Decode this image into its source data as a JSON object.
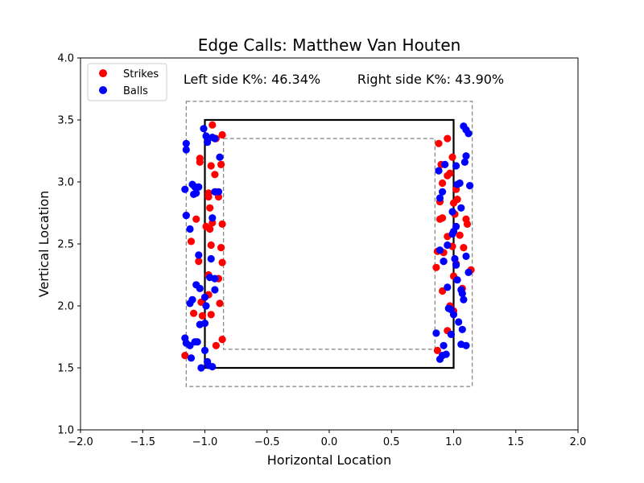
{
  "chart_data": {
    "type": "scatter",
    "title": "Edge Calls: Matthew Van Houten",
    "xlabel": "Horizontal Location",
    "ylabel": "Vertical Location",
    "xlim": [
      -2.0,
      2.0
    ],
    "ylim": [
      1.0,
      4.0
    ],
    "xticks": [
      "−2.0",
      "−1.5",
      "−1.0",
      "−0.5",
      "0.0",
      "0.5",
      "1.0",
      "1.5",
      "2.0"
    ],
    "yticks": [
      "1.0",
      "1.5",
      "2.0",
      "2.5",
      "3.0",
      "3.5",
      "4.0"
    ],
    "grid": false,
    "legend_position": "top-left",
    "annotations": {
      "left": "Left side K%: 46.34%",
      "right": "Right side K%: 43.90%"
    },
    "zones": {
      "strike_zone": {
        "x": [
          -1.0,
          1.0
        ],
        "y": [
          1.5,
          3.5
        ],
        "color": "#000000",
        "style": "solid"
      },
      "outer_edge": {
        "x": [
          -1.15,
          1.15
        ],
        "y": [
          1.35,
          3.65
        ],
        "color": "#808080",
        "style": "dashed"
      },
      "inner_edge": {
        "x": [
          -0.85,
          0.85
        ],
        "y": [
          1.65,
          3.35
        ],
        "color": "#808080",
        "style": "dashed"
      }
    },
    "series": [
      {
        "name": "Strikes",
        "color": "#ff0000",
        "points": [
          [
            -0.94,
            3.46
          ],
          [
            -1.04,
            3.19
          ],
          [
            -1.04,
            3.16
          ],
          [
            -0.86,
            3.38
          ],
          [
            -0.91,
            3.35
          ],
          [
            -0.95,
            3.13
          ],
          [
            -0.87,
            3.14
          ],
          [
            -0.92,
            3.06
          ],
          [
            -0.97,
            2.91
          ],
          [
            -0.97,
            2.88
          ],
          [
            -0.91,
            2.92
          ],
          [
            -0.89,
            2.88
          ],
          [
            -0.96,
            2.79
          ],
          [
            -0.99,
            2.64
          ],
          [
            -0.96,
            2.62
          ],
          [
            -0.94,
            2.67
          ],
          [
            -1.15,
            2.73
          ],
          [
            -1.07,
            2.7
          ],
          [
            -0.86,
            2.66
          ],
          [
            -1.11,
            2.52
          ],
          [
            -0.95,
            2.49
          ],
          [
            -0.87,
            2.47
          ],
          [
            -1.05,
            2.36
          ],
          [
            -0.86,
            2.35
          ],
          [
            -0.97,
            2.25
          ],
          [
            -0.89,
            2.22
          ],
          [
            -0.97,
            2.09
          ],
          [
            -1.03,
            2.03
          ],
          [
            -0.88,
            2.02
          ],
          [
            -0.95,
            1.93
          ],
          [
            -1.09,
            1.94
          ],
          [
            -1.02,
            1.92
          ],
          [
            -0.86,
            1.73
          ],
          [
            -0.91,
            1.68
          ],
          [
            -1.16,
            1.6
          ],
          [
            0.88,
            3.31
          ],
          [
            0.95,
            3.35
          ],
          [
            0.9,
            3.14
          ],
          [
            0.99,
            3.2
          ],
          [
            1.02,
            2.94
          ],
          [
            0.91,
            2.99
          ],
          [
            0.95,
            3.05
          ],
          [
            0.97,
            3.07
          ],
          [
            1.03,
            2.86
          ],
          [
            1.0,
            2.83
          ],
          [
            0.89,
            2.84
          ],
          [
            1.01,
            2.74
          ],
          [
            0.91,
            2.71
          ],
          [
            0.89,
            2.7
          ],
          [
            0.95,
            2.56
          ],
          [
            1.05,
            2.57
          ],
          [
            1.11,
            2.66
          ],
          [
            1.1,
            2.7
          ],
          [
            0.87,
            2.44
          ],
          [
            0.92,
            2.43
          ],
          [
            0.99,
            2.48
          ],
          [
            1.08,
            2.47
          ],
          [
            0.86,
            2.31
          ],
          [
            0.92,
            2.36
          ],
          [
            1.02,
            2.34
          ],
          [
            1.14,
            2.29
          ],
          [
            1.0,
            2.24
          ],
          [
            0.91,
            2.12
          ],
          [
            1.07,
            2.14
          ],
          [
            0.97,
            2.0
          ],
          [
            1.0,
            1.96
          ],
          [
            0.95,
            1.8
          ],
          [
            0.87,
            1.64
          ]
        ]
      },
      {
        "name": "Balls",
        "color": "#0000ff",
        "points": [
          [
            -1.15,
            3.31
          ],
          [
            -1.15,
            3.26
          ],
          [
            -1.01,
            3.43
          ],
          [
            -0.99,
            3.37
          ],
          [
            -0.98,
            3.32
          ],
          [
            -0.94,
            3.36
          ],
          [
            -0.88,
            3.2
          ],
          [
            -0.92,
            3.35
          ],
          [
            -1.16,
            2.94
          ],
          [
            -1.1,
            2.98
          ],
          [
            -1.08,
            2.96
          ],
          [
            -1.07,
            2.91
          ],
          [
            -1.05,
            2.96
          ],
          [
            -1.09,
            2.9
          ],
          [
            -0.92,
            2.92
          ],
          [
            -0.89,
            2.92
          ],
          [
            -1.15,
            2.73
          ],
          [
            -1.12,
            2.62
          ],
          [
            -0.94,
            2.71
          ],
          [
            -1.05,
            2.41
          ],
          [
            -0.95,
            2.38
          ],
          [
            -0.96,
            2.23
          ],
          [
            -0.92,
            2.22
          ],
          [
            -1.07,
            2.17
          ],
          [
            -1.04,
            2.14
          ],
          [
            -0.92,
            2.13
          ],
          [
            -1.0,
            2.07
          ],
          [
            -1.1,
            2.05
          ],
          [
            -1.12,
            2.02
          ],
          [
            -0.99,
            2.0
          ],
          [
            -1.04,
            1.85
          ],
          [
            -1.0,
            1.86
          ],
          [
            -1.16,
            1.74
          ],
          [
            -1.15,
            1.7
          ],
          [
            -1.12,
            1.68
          ],
          [
            -1.08,
            1.71
          ],
          [
            -1.06,
            1.71
          ],
          [
            -1.0,
            1.64
          ],
          [
            -0.98,
            1.55
          ],
          [
            -0.97,
            1.52
          ],
          [
            -0.94,
            1.51
          ],
          [
            -1.03,
            1.5
          ],
          [
            -1.11,
            1.58
          ],
          [
            1.08,
            3.45
          ],
          [
            1.1,
            3.42
          ],
          [
            1.12,
            3.39
          ],
          [
            1.1,
            3.21
          ],
          [
            1.09,
            3.16
          ],
          [
            1.02,
            3.13
          ],
          [
            0.93,
            3.14
          ],
          [
            0.88,
            3.09
          ],
          [
            1.05,
            2.99
          ],
          [
            1.03,
            2.98
          ],
          [
            1.13,
            2.97
          ],
          [
            0.91,
            2.92
          ],
          [
            0.89,
            2.87
          ],
          [
            1.06,
            2.79
          ],
          [
            0.99,
            2.76
          ],
          [
            1.02,
            2.64
          ],
          [
            1.0,
            2.6
          ],
          [
            0.99,
            2.58
          ],
          [
            0.95,
            2.49
          ],
          [
            1.1,
            2.4
          ],
          [
            0.89,
            2.45
          ],
          [
            0.92,
            2.36
          ],
          [
            1.01,
            2.38
          ],
          [
            1.02,
            2.33
          ],
          [
            1.12,
            2.27
          ],
          [
            1.03,
            2.21
          ],
          [
            0.95,
            2.15
          ],
          [
            1.06,
            2.13
          ],
          [
            1.07,
            2.1
          ],
          [
            1.08,
            2.05
          ],
          [
            0.96,
            1.98
          ],
          [
            0.98,
            1.97
          ],
          [
            1.0,
            1.93
          ],
          [
            1.04,
            1.87
          ],
          [
            1.07,
            1.81
          ],
          [
            0.86,
            1.78
          ],
          [
            0.98,
            1.77
          ],
          [
            1.06,
            1.69
          ],
          [
            1.1,
            1.68
          ],
          [
            0.92,
            1.68
          ],
          [
            0.94,
            1.61
          ],
          [
            0.89,
            1.57
          ],
          [
            0.91,
            1.6
          ]
        ]
      }
    ]
  }
}
